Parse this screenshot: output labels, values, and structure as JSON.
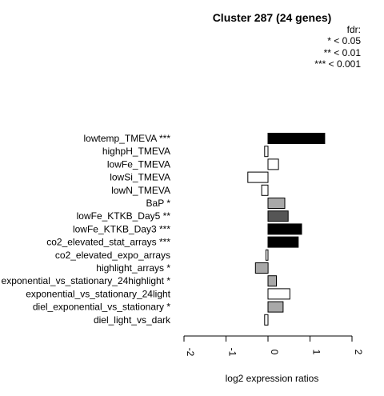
{
  "chart_data": {
    "type": "bar",
    "orientation": "horizontal",
    "title": "Cluster 287 (24 genes)",
    "xlabel": "log2 expression ratios",
    "xlim": [
      -2,
      2
    ],
    "xticks": [
      "-2",
      "-1",
      "0",
      "1",
      "2"
    ],
    "legend": {
      "title": "fdr:",
      "entries": [
        "* < 0.05",
        "** < 0.01",
        "*** < 0.001"
      ],
      "placement": "top-right"
    },
    "categories": [
      "lowtemp_TMEVA ***",
      "highpH_TMEVA",
      "lowFe_TMEVA",
      "lowSi_TMEVA",
      "lowN_TMEVA",
      "BaP *",
      "lowFe_KTKB_Day5 **",
      "lowFe_KTKB_Day3 ***",
      "co2_elevated_stat_arrays ***",
      "co2_elevated_expo_arrays",
      "highlight_arrays *",
      "exponential_vs_stationary_24highlight *",
      "exponential_vs_stationary_24light",
      "diel_exponential_vs_stationary *",
      "diel_light_vs_dark"
    ],
    "values": [
      1.35,
      -0.08,
      0.25,
      -0.48,
      -0.15,
      0.4,
      0.48,
      0.8,
      0.72,
      -0.05,
      -0.3,
      0.2,
      0.52,
      0.36,
      -0.08
    ],
    "fills": [
      "#000000",
      "#ffffff",
      "#ffffff",
      "#ffffff",
      "#ffffff",
      "#a8a8a8",
      "#555555",
      "#000000",
      "#000000",
      "#ffffff",
      "#a8a8a8",
      "#a8a8a8",
      "#ffffff",
      "#a8a8a8",
      "#ffffff"
    ]
  }
}
